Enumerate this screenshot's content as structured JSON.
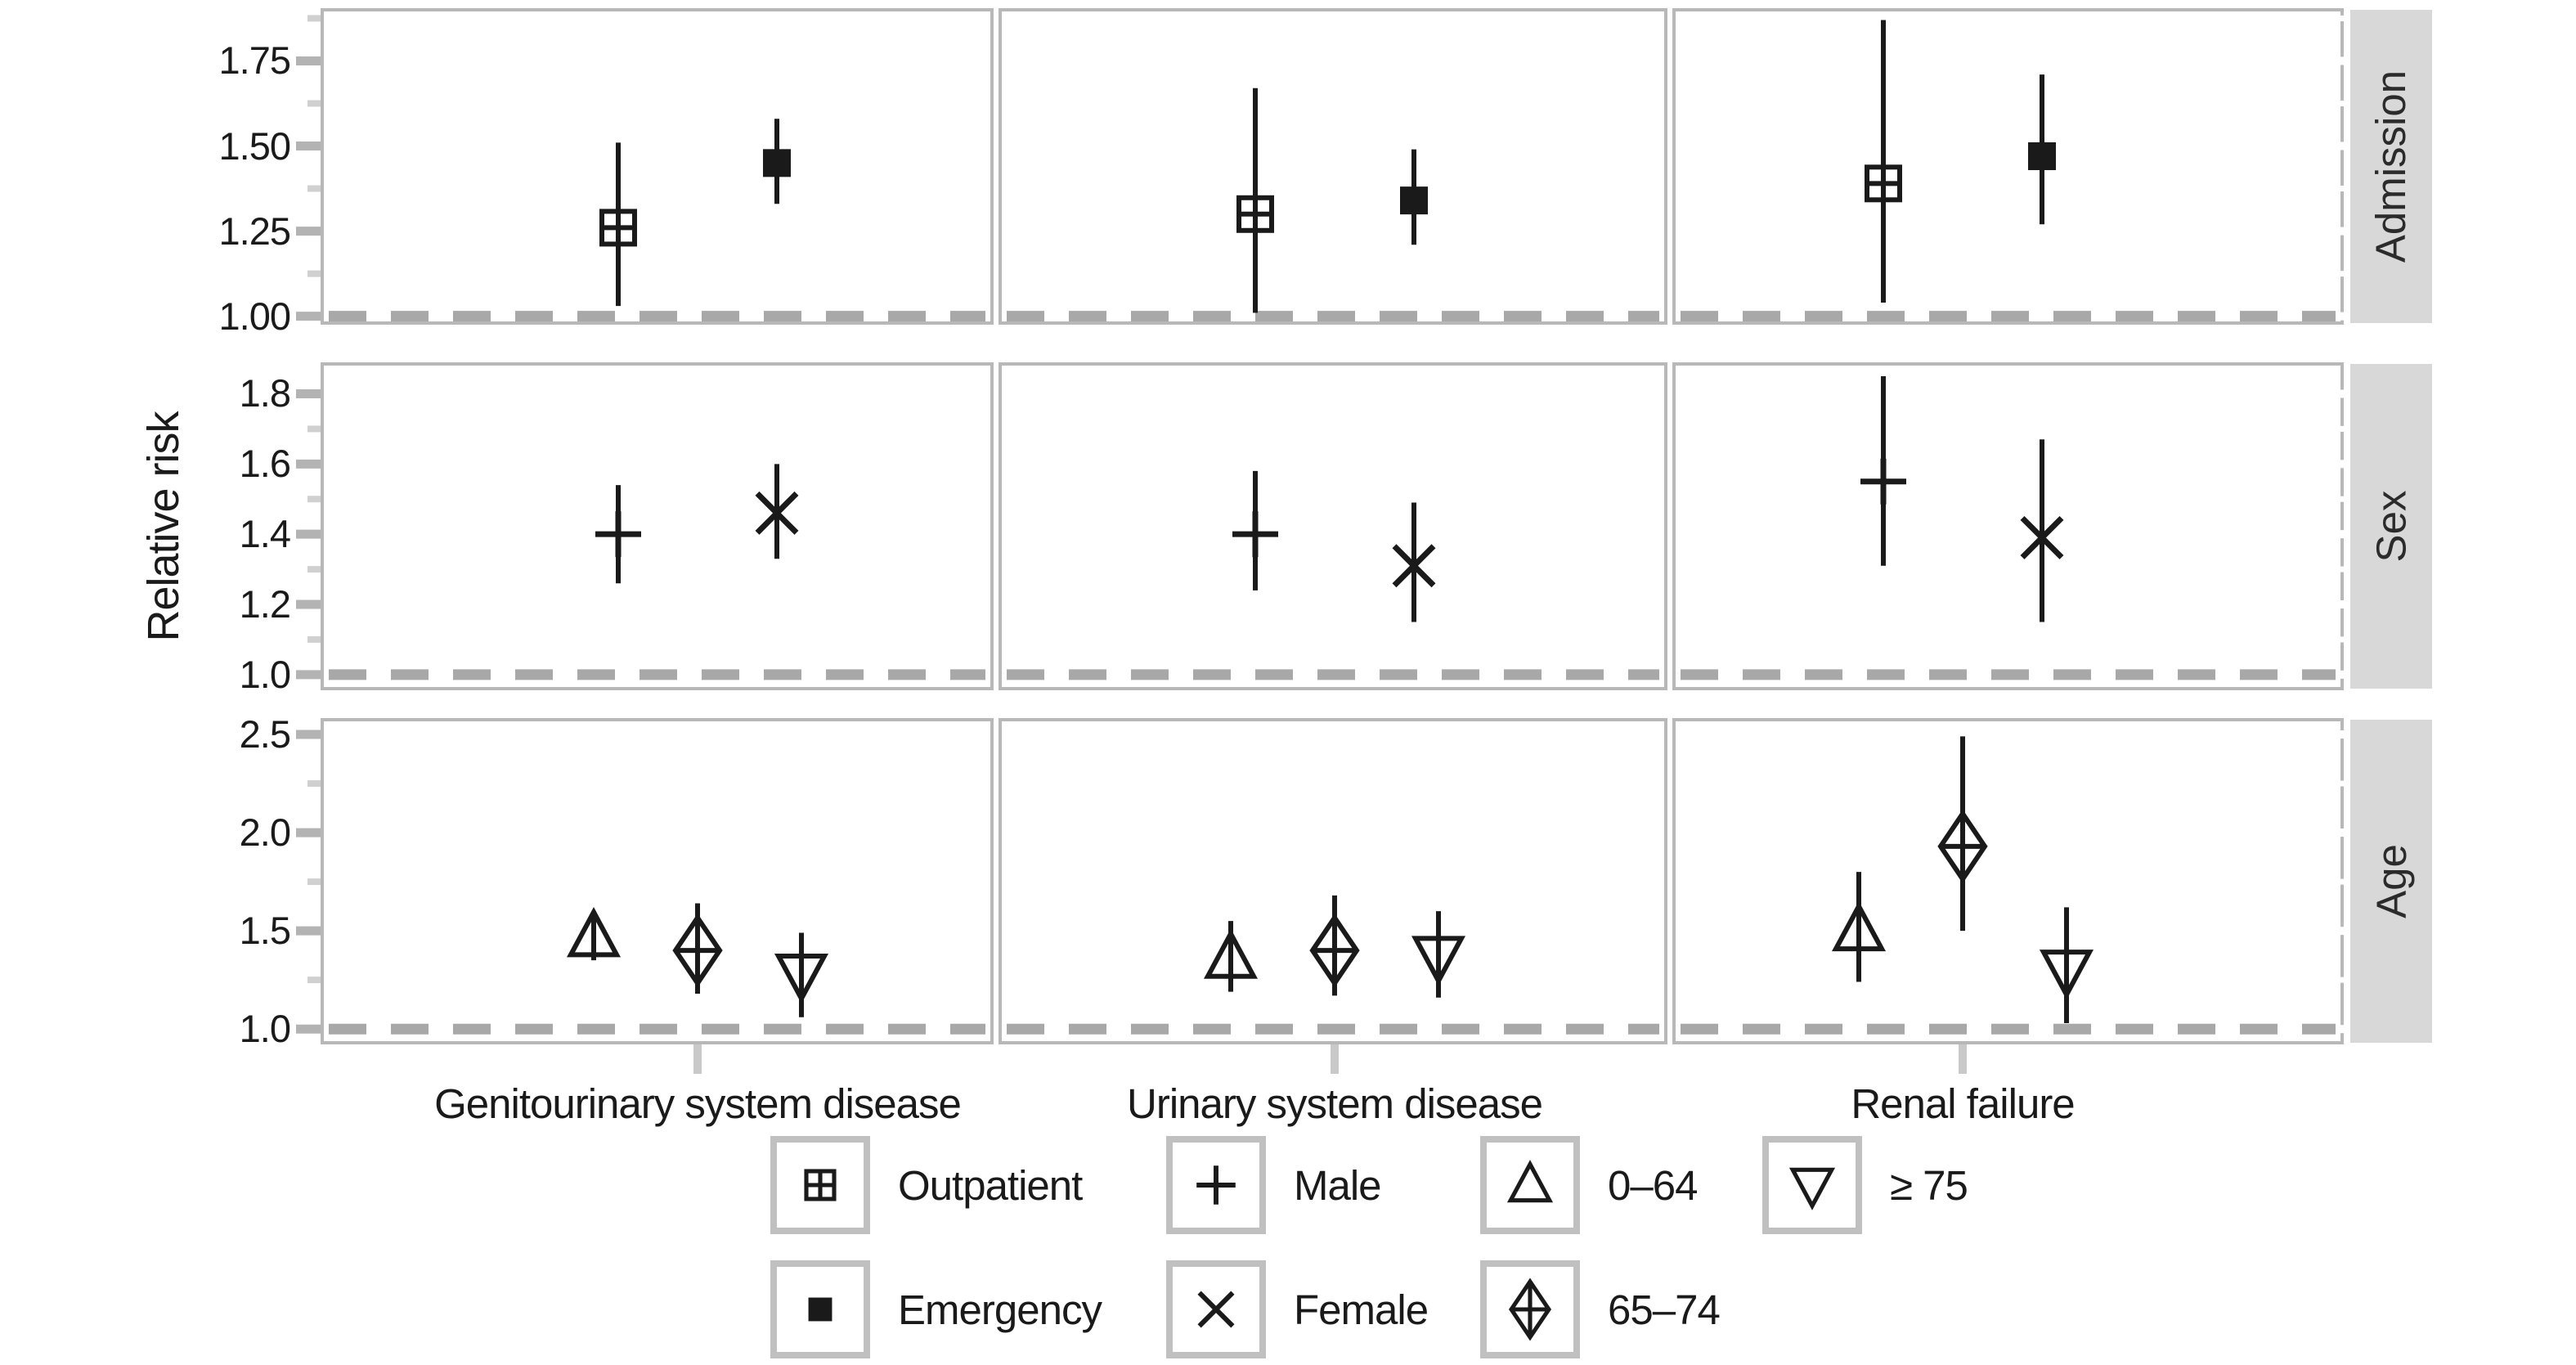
{
  "figure": {
    "ylabel": "Relative risk"
  },
  "chart_data": {
    "type": "scatter",
    "subtype": "faceted-forest-plot-with-error-bars",
    "title": "",
    "xlabel": "",
    "ylabel": "Relative risk",
    "grid": false,
    "reference_line_y": 1.0,
    "categories": [
      "Genitourinary system disease",
      "Urinary system disease",
      "Renal failure"
    ],
    "colors": {
      "marker": "#1a1a1a",
      "panel_border": "#b8b8b8",
      "strip_background": "#d8d8d8",
      "strip_text": "#2b2b2b",
      "dashed_reference": "#a8a8a8",
      "major_tick": "#b3b3b3",
      "minor_tick": "#d0d0d0",
      "x_tick": "#c9c9c9"
    },
    "panels": [
      {
        "strip": "Admission",
        "ylim": [
          0.98,
          1.9
        ],
        "yticks": [
          1.0,
          1.25,
          1.5,
          1.75
        ],
        "ytick_labels": [
          "1.00",
          "1.25",
          "1.50",
          "1.75"
        ],
        "minor_ticks": [
          1.125,
          1.375,
          1.625,
          1.875
        ],
        "series": [
          {
            "name": "Outpatient",
            "marker": "square-plus",
            "points": [
              {
                "category": "Genitourinary system disease",
                "rr": 1.26,
                "ci_low": 1.03,
                "ci_high": 1.51
              },
              {
                "category": "Urinary system disease",
                "rr": 1.3,
                "ci_low": 1.01,
                "ci_high": 1.67
              },
              {
                "category": "Renal failure",
                "rr": 1.39,
                "ci_low": 1.04,
                "ci_high": 1.87
              }
            ]
          },
          {
            "name": "Emergency",
            "marker": "square-filled",
            "points": [
              {
                "category": "Genitourinary system disease",
                "rr": 1.45,
                "ci_low": 1.33,
                "ci_high": 1.58
              },
              {
                "category": "Urinary system disease",
                "rr": 1.34,
                "ci_low": 1.21,
                "ci_high": 1.49
              },
              {
                "category": "Renal failure",
                "rr": 1.47,
                "ci_low": 1.27,
                "ci_high": 1.71
              }
            ]
          }
        ]
      },
      {
        "strip": "Sex",
        "ylim": [
          0.96,
          1.885
        ],
        "yticks": [
          1.0,
          1.2,
          1.4,
          1.6,
          1.8
        ],
        "ytick_labels": [
          "1.0",
          "1.2",
          "1.4",
          "1.6",
          "1.8"
        ],
        "minor_ticks": [
          1.1,
          1.3,
          1.5,
          1.7
        ],
        "series": [
          {
            "name": "Male",
            "marker": "plus",
            "points": [
              {
                "category": "Genitourinary system disease",
                "rr": 1.4,
                "ci_low": 1.26,
                "ci_high": 1.54
              },
              {
                "category": "Urinary system disease",
                "rr": 1.4,
                "ci_low": 1.24,
                "ci_high": 1.58
              },
              {
                "category": "Renal failure",
                "rr": 1.55,
                "ci_low": 1.31,
                "ci_high": 1.85
              }
            ]
          },
          {
            "name": "Female",
            "marker": "times",
            "points": [
              {
                "category": "Genitourinary system disease",
                "rr": 1.46,
                "ci_low": 1.33,
                "ci_high": 1.6
              },
              {
                "category": "Urinary system disease",
                "rr": 1.31,
                "ci_low": 1.15,
                "ci_high": 1.49
              },
              {
                "category": "Renal failure",
                "rr": 1.39,
                "ci_low": 1.15,
                "ci_high": 1.67
              }
            ]
          }
        ]
      },
      {
        "strip": "Age",
        "ylim": [
          0.93,
          2.575
        ],
        "yticks": [
          1.0,
          1.5,
          2.0,
          2.5
        ],
        "ytick_labels": [
          "1.0",
          "1.5",
          "2.0",
          "2.5"
        ],
        "minor_ticks": [
          1.25,
          1.75,
          2.25
        ],
        "series": [
          {
            "name": "0–64",
            "marker": "triangle-up",
            "points": [
              {
                "category": "Genitourinary system disease",
                "rr": 1.47,
                "ci_low": 1.35,
                "ci_high": 1.6
              },
              {
                "category": "Urinary system disease",
                "rr": 1.36,
                "ci_low": 1.19,
                "ci_high": 1.55
              },
              {
                "category": "Renal failure",
                "rr": 1.5,
                "ci_low": 1.24,
                "ci_high": 1.8
              }
            ]
          },
          {
            "name": "65–74",
            "marker": "diamond-plus",
            "points": [
              {
                "category": "Genitourinary system disease",
                "rr": 1.4,
                "ci_low": 1.18,
                "ci_high": 1.64
              },
              {
                "category": "Urinary system disease",
                "rr": 1.4,
                "ci_low": 1.17,
                "ci_high": 1.68
              },
              {
                "category": "Renal failure",
                "rr": 1.93,
                "ci_low": 1.5,
                "ci_high": 2.49
              }
            ]
          },
          {
            "name": "≥ 75",
            "marker": "triangle-down",
            "points": [
              {
                "category": "Genitourinary system disease",
                "rr": 1.28,
                "ci_low": 1.06,
                "ci_high": 1.49
              },
              {
                "category": "Urinary system disease",
                "rr": 1.37,
                "ci_low": 1.16,
                "ci_high": 1.6
              },
              {
                "category": "Renal failure",
                "rr": 1.3,
                "ci_low": 1.03,
                "ci_high": 1.62
              }
            ]
          }
        ]
      }
    ],
    "legend": {
      "position": "bottom",
      "rows": [
        [
          {
            "label": "Outpatient",
            "marker": "square-plus"
          },
          {
            "label": "Male",
            "marker": "plus"
          },
          {
            "label": "0–64",
            "marker": "triangle-up"
          },
          {
            "label": "≥ 75",
            "marker": "triangle-down"
          }
        ],
        [
          {
            "label": "Emergency",
            "marker": "square-filled"
          },
          {
            "label": "Female",
            "marker": "times"
          },
          {
            "label": "65–74",
            "marker": "diamond-plus"
          }
        ]
      ]
    }
  }
}
